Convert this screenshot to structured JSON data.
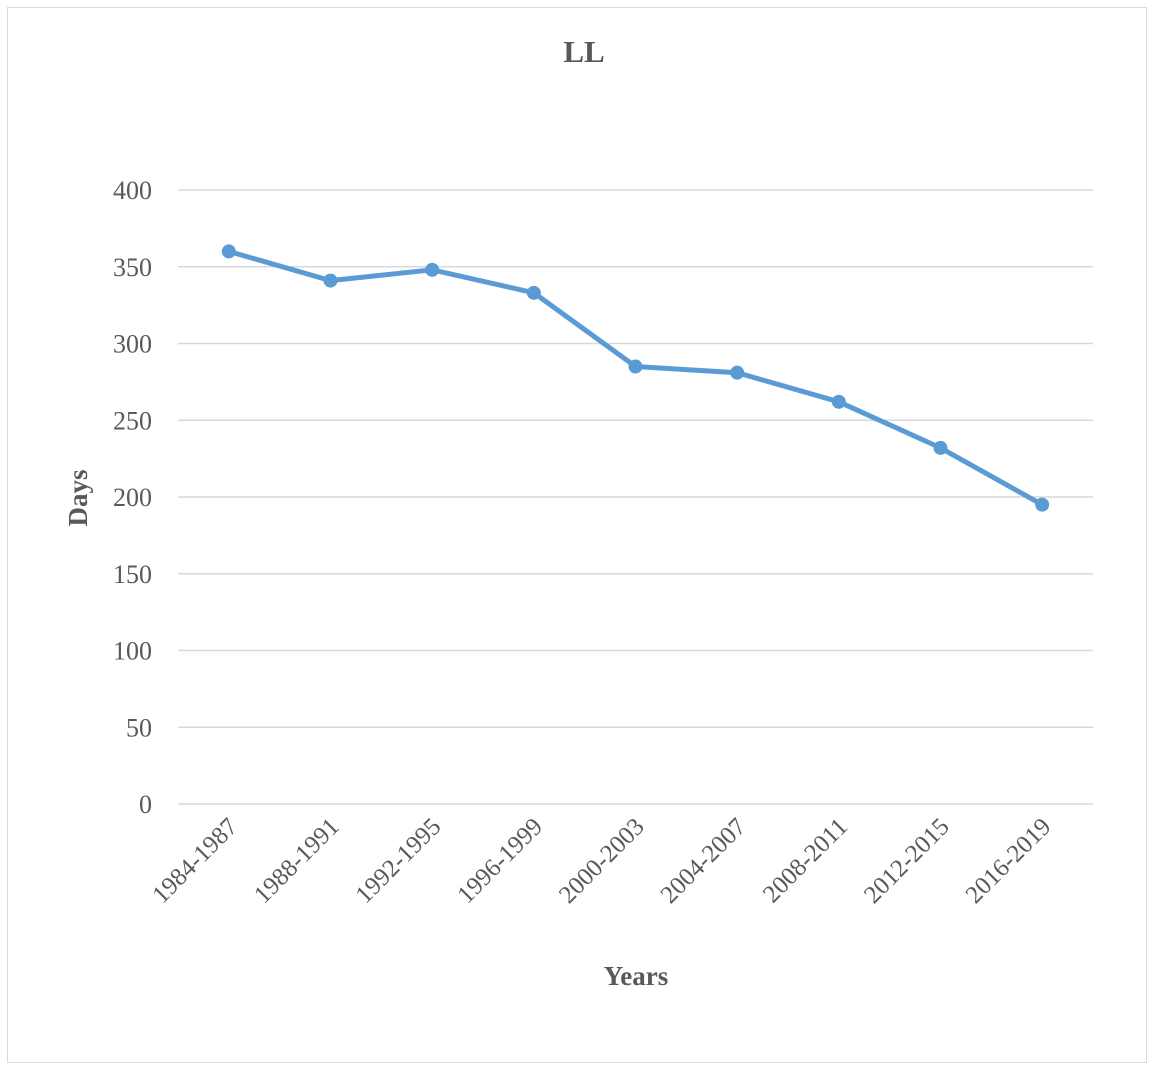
{
  "chart_data": {
    "type": "line",
    "title": "LL",
    "xlabel": "Years",
    "ylabel": "Days",
    "categories": [
      "1984-1987",
      "1988-1991",
      "1992-1995",
      "1996-1999",
      "2000-2003",
      "2004-2007",
      "2008-2011",
      "2012-2015",
      "2016-2019"
    ],
    "series": [
      {
        "values": [
          360,
          341,
          348,
          333,
          285,
          281,
          262,
          232,
          195
        ],
        "color": "#5b9bd5"
      }
    ],
    "ylim": [
      0,
      400
    ],
    "yticks": [
      0,
      50,
      100,
      150,
      200,
      250,
      300,
      350,
      400
    ],
    "grid": true,
    "legend": "none"
  }
}
